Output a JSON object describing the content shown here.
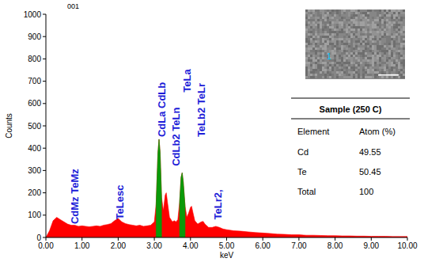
{
  "chart_data": {
    "type": "area",
    "title": "001",
    "x_label": "keV",
    "y_label": "Counts",
    "x": [
      0,
      0.1,
      0.2,
      0.3,
      0.4,
      0.5,
      0.6,
      0.7,
      0.8,
      0.9,
      1.0,
      1.1,
      1.2,
      1.3,
      1.4,
      1.5,
      1.6,
      1.7,
      1.8,
      1.9,
      2.0,
      2.1,
      2.2,
      2.3,
      2.4,
      2.5,
      2.6,
      2.7,
      2.8,
      2.9,
      3.0,
      3.05,
      3.1,
      3.13,
      3.16,
      3.2,
      3.25,
      3.3,
      3.33,
      3.37,
      3.42,
      3.5,
      3.55,
      3.6,
      3.65,
      3.7,
      3.74,
      3.77,
      3.8,
      3.85,
      3.9,
      3.95,
      4.0,
      4.03,
      4.07,
      4.12,
      4.2,
      4.3,
      4.35,
      4.4,
      4.5,
      4.6,
      4.7,
      4.8,
      4.9,
      5.0,
      5.2,
      5.4,
      5.6,
      5.8,
      6.0,
      6.2,
      6.4,
      6.6,
      6.8,
      7.0,
      7.2,
      7.4,
      7.6,
      7.8,
      8.0,
      8.2,
      8.4,
      8.6,
      8.8,
      9.0,
      9.2,
      9.4,
      9.6,
      9.8,
      10.0
    ],
    "series": [
      {
        "color": "#ff0000",
        "values": [
          0,
          30,
          75,
          90,
          80,
          70,
          60,
          55,
          55,
          50,
          52,
          50,
          48,
          50,
          52,
          50,
          55,
          58,
          62,
          75,
          85,
          70,
          62,
          58,
          55,
          52,
          55,
          50,
          52,
          55,
          70,
          150,
          380,
          440,
          380,
          180,
          120,
          190,
          200,
          150,
          90,
          70,
          75,
          70,
          80,
          160,
          270,
          290,
          250,
          140,
          90,
          110,
          135,
          140,
          110,
          75,
          60,
          70,
          72,
          60,
          45,
          45,
          50,
          45,
          38,
          35,
          30,
          28,
          25,
          22,
          20,
          18,
          15,
          14,
          12,
          12,
          10,
          10,
          9,
          8,
          8,
          7,
          7,
          6,
          6,
          5,
          5,
          5,
          4,
          4,
          4
        ]
      },
      {
        "color": "#0a9a0a",
        "values": [
          null,
          null,
          null,
          null,
          null,
          null,
          null,
          null,
          null,
          null,
          null,
          null,
          null,
          null,
          null,
          null,
          null,
          null,
          null,
          null,
          null,
          null,
          null,
          null,
          null,
          null,
          null,
          null,
          null,
          null,
          null,
          150,
          380,
          440,
          380,
          180,
          null,
          null,
          null,
          null,
          null,
          null,
          null,
          null,
          null,
          160,
          270,
          290,
          250,
          140,
          null,
          null,
          null,
          null,
          null,
          null,
          null,
          null,
          null,
          null,
          null,
          null,
          null,
          null,
          null,
          null,
          null,
          null,
          null,
          null,
          null,
          null,
          null,
          null,
          null,
          null,
          null,
          null,
          null,
          null,
          null,
          null,
          null,
          null,
          null,
          null,
          null,
          null,
          null,
          null,
          null
        ]
      }
    ],
    "xlim": [
      0,
      10
    ],
    "ylim": [
      0,
      1000
    ],
    "xticks": [
      {
        "value": 0,
        "label": "0.00"
      },
      {
        "value": 1,
        "label": "1.00"
      },
      {
        "value": 2,
        "label": "2.00"
      },
      {
        "value": 3,
        "label": "3.00"
      },
      {
        "value": 4,
        "label": "4.00"
      },
      {
        "value": 5,
        "label": "5.00"
      },
      {
        "value": 6,
        "label": "6.00"
      },
      {
        "value": 7,
        "label": "7.00"
      },
      {
        "value": 8,
        "label": "8.00"
      },
      {
        "value": 9,
        "label": "9.00"
      },
      {
        "value": 10,
        "label": "10.00"
      }
    ],
    "yticks": [
      0,
      100,
      200,
      300,
      400,
      500,
      600,
      700,
      800,
      900,
      1000
    ],
    "grid": false,
    "annotations": [
      {
        "text": "CdMz TeMz",
        "x": 0.9,
        "y": 60
      },
      {
        "text": "TeLesc",
        "x": 2.15,
        "y": 80
      },
      {
        "text": "CdLa CdLb",
        "x": 3.3,
        "y": 450
      },
      {
        "text": "CdLb2 TeLn",
        "x": 3.7,
        "y": 320
      },
      {
        "text": "TeLa",
        "x": 4.0,
        "y": 650
      },
      {
        "text": "TeLb2 TeLr",
        "x": 4.4,
        "y": 450
      },
      {
        "text": "TeLr2,",
        "x": 4.85,
        "y": 80
      }
    ],
    "inset_marker": "1",
    "table": {
      "title": "Sample (250 C)",
      "columns": [
        "Element",
        "Atom (%)"
      ],
      "rows": [
        [
          "Cd",
          49.55
        ],
        [
          "Te",
          50.45
        ],
        [
          "Total",
          100
        ]
      ]
    }
  }
}
